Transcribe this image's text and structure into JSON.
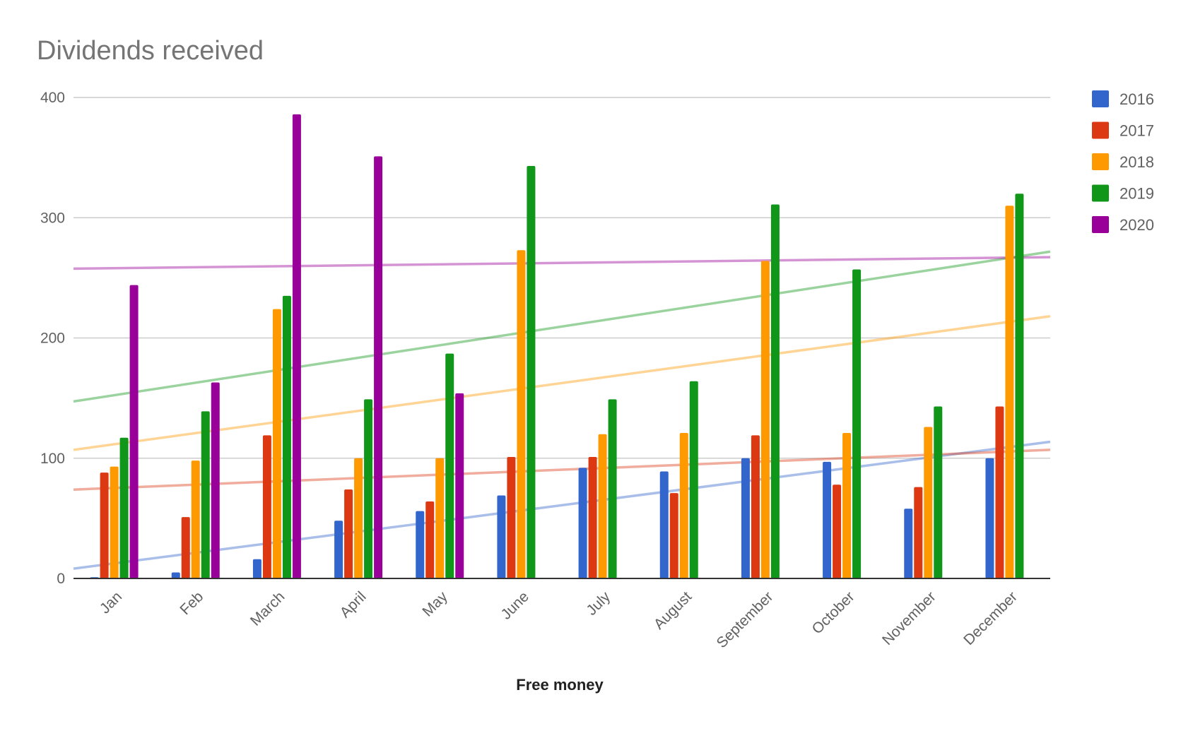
{
  "chart_data": {
    "type": "bar",
    "title": "Dividends received",
    "xlabel": "Free money",
    "ylabel": "",
    "ylim": [
      0,
      400
    ],
    "yticks": [
      "0",
      "100",
      "200",
      "300",
      "400"
    ],
    "grid": true,
    "legend_position": "right",
    "categories": [
      "Jan",
      "Feb",
      "March",
      "April",
      "May",
      "June",
      "July",
      "August",
      "September",
      "October",
      "November",
      "December"
    ],
    "series": [
      {
        "name": "2016",
        "color": "#3366cc",
        "values": [
          1,
          5,
          16,
          48,
          56,
          69,
          92,
          89,
          100,
          97,
          58,
          100
        ]
      },
      {
        "name": "2017",
        "color": "#dc3912",
        "values": [
          88,
          51,
          119,
          74,
          64,
          101,
          101,
          71,
          119,
          78,
          76,
          143
        ]
      },
      {
        "name": "2018",
        "color": "#ff9900",
        "values": [
          93,
          98,
          224,
          100,
          100,
          273,
          120,
          121,
          264,
          121,
          126,
          310
        ]
      },
      {
        "name": "2019",
        "color": "#109618",
        "values": [
          117,
          139,
          235,
          149,
          187,
          343,
          149,
          164,
          311,
          257,
          143,
          320
        ]
      },
      {
        "name": "2020",
        "color": "#990099",
        "values": [
          244,
          163,
          386,
          351,
          154,
          null,
          null,
          null,
          null,
          null,
          null,
          null
        ]
      }
    ],
    "trendlines": true
  }
}
